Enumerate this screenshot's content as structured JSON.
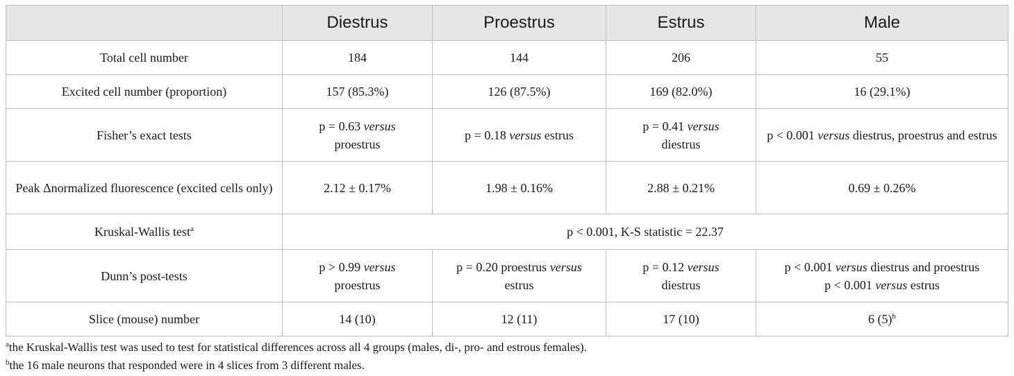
{
  "header": [
    "",
    "Diestrus",
    "Proestrus",
    "Estrus",
    "Male"
  ],
  "rows": {
    "total": {
      "label": "Total cell number",
      "diestrus": "184",
      "proestrus": "144",
      "estrus": "206",
      "male": "55"
    },
    "excited": {
      "label": "Excited cell number (proportion)",
      "diestrus": "157 (85.3%)",
      "proestrus": "126 (87.5%)",
      "estrus": "169 (82.0%)",
      "male": "16 (29.1%)"
    },
    "fisher": {
      "label": "Fisher’s exact tests",
      "diestrus_a": "p = 0.63 ",
      "diestrus_em": "versus",
      "diestrus_b": "proestrus",
      "proestrus_a": "p = 0.18 ",
      "proestrus_em": "versus",
      "proestrus_b": " estrus",
      "estrus_a": "p = 0.41 ",
      "estrus_em": "versus",
      "estrus_b": "diestrus",
      "male_a": "p < 0.001 ",
      "male_em": "versus",
      "male_b": " diestrus, proestrus and estrus"
    },
    "peak": {
      "label": "Peak Δnormalized fluorescence (excited cells only)",
      "diestrus": "2.12 ± 0.17%",
      "proestrus": "1.98 ± 0.16%",
      "estrus": "2.88 ± 0.21%",
      "male": "0.69 ± 0.26%"
    },
    "kruskal": {
      "label": "Kruskal-Wallis test",
      "label_sup": "a",
      "value": "p < 0.001, K-S statistic = 22.37"
    },
    "dunn": {
      "label": "Dunn’s post-tests",
      "diestrus_a": "p > 0.99 ",
      "diestrus_em": "versus",
      "diestrus_b": "proestrus",
      "proestrus_a": "p = 0.20 proestrus ",
      "proestrus_em": "versus",
      "proestrus_b": "estrus",
      "estrus_a": "p = 0.12 ",
      "estrus_em": "versus",
      "estrus_b": "diestrus",
      "male_l1_a": "p < 0.001 ",
      "male_l1_em": "versus",
      "male_l1_b": " diestrus and proestrus",
      "male_l2_a": "p < 0.001 ",
      "male_l2_em": "versus",
      "male_l2_b": " estrus"
    },
    "slice": {
      "label": "Slice (mouse) number",
      "diestrus": "14 (10)",
      "proestrus": "12 (11)",
      "estrus": "17 (10)",
      "male": "6 (5)",
      "male_sup": "b"
    }
  },
  "footnotes": {
    "a_mark": "a",
    "a_text": "the Kruskal-Wallis test was used to test for statistical differences across all 4 groups (males, di-, pro- and estrous females).",
    "b_mark": "b",
    "b_text": "the 16 male neurons that responded were in 4 slices from 3 different males."
  }
}
